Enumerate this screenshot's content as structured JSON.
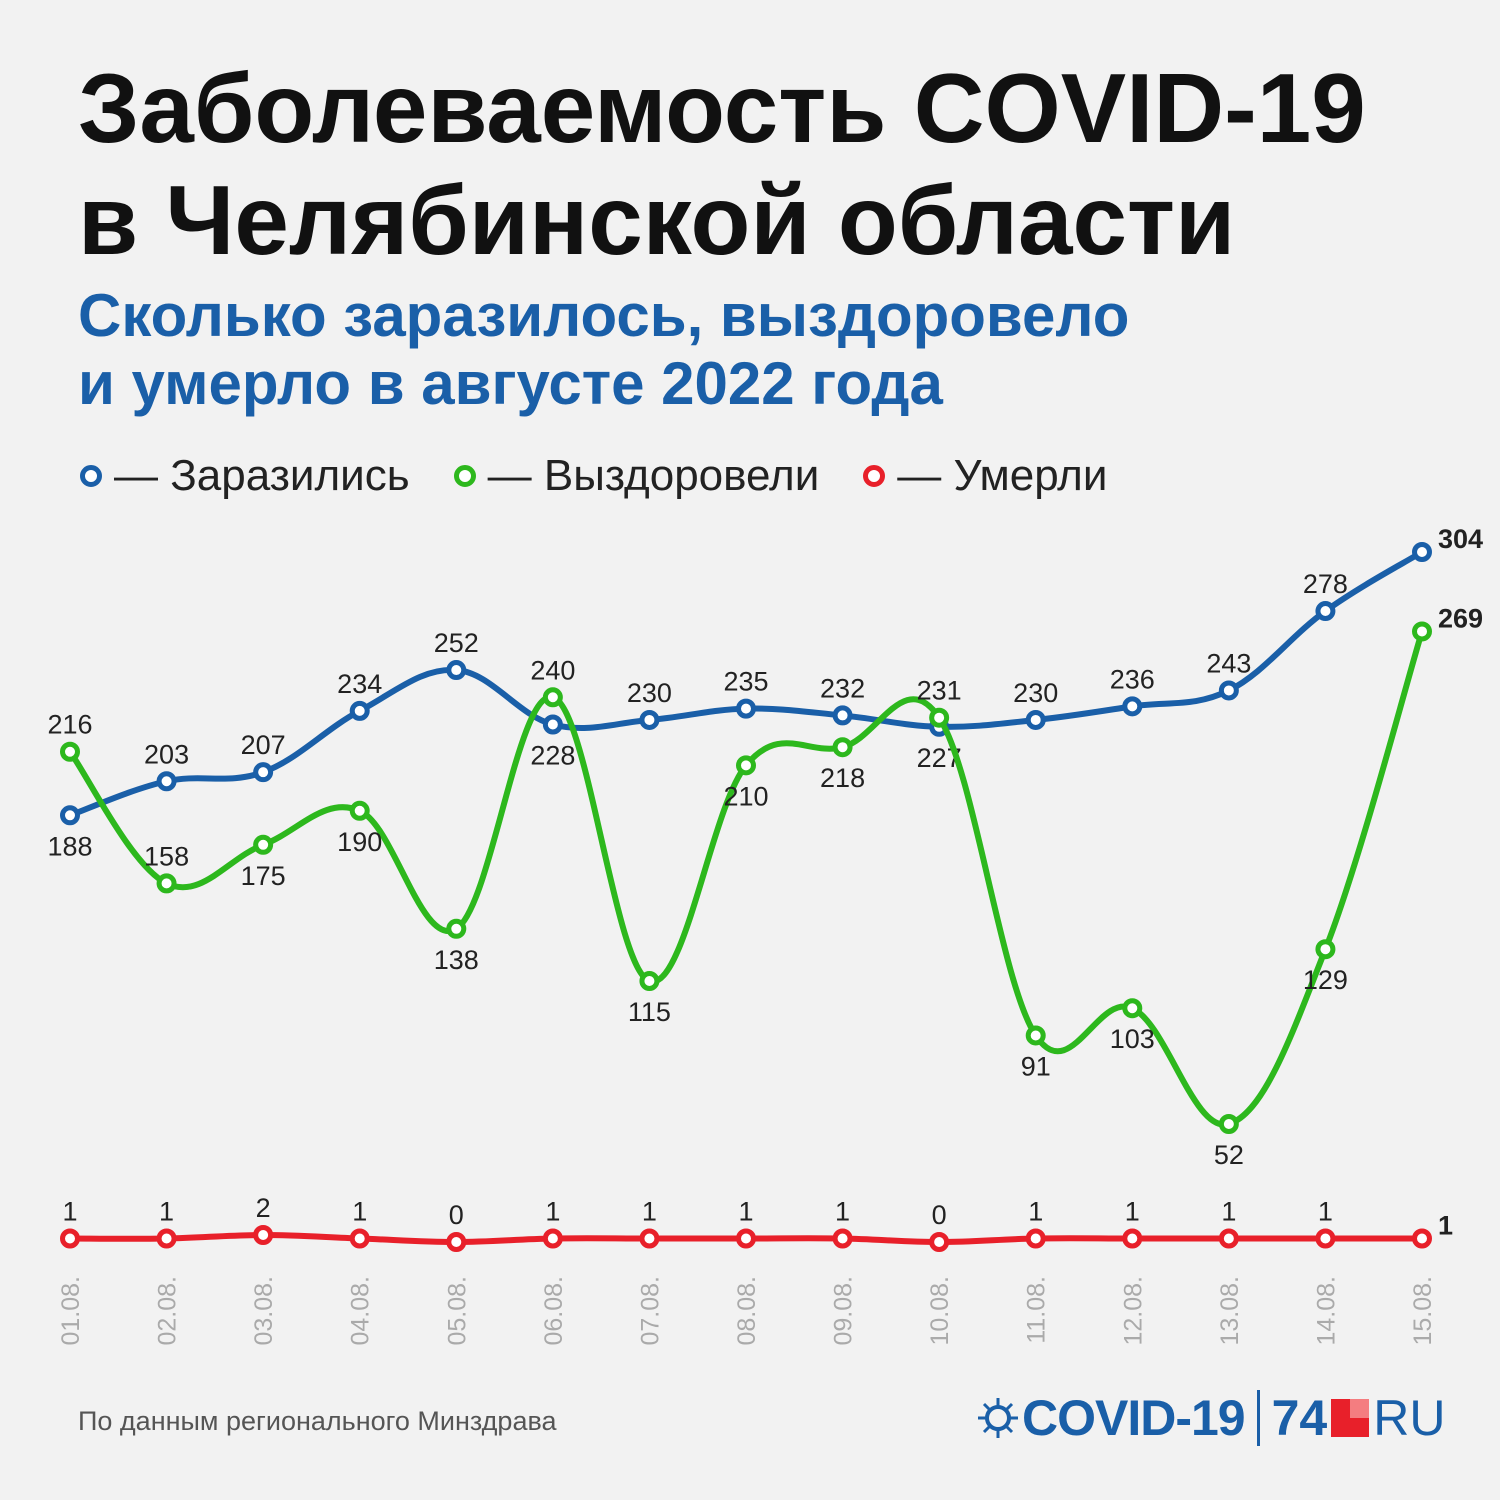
{
  "header": {
    "title_line1": "Заболеваемость COVID-19",
    "title_line2": "в Челябинской области",
    "subtitle_line1": "Сколько заразилось, выздоровело",
    "subtitle_line2": "и умерло в августе 2022 года"
  },
  "footer": {
    "source": "По данным регионального Минздрава",
    "logo_covid": "COVID-19",
    "logo_74": "74",
    "logo_ru": "RU"
  },
  "colors": {
    "infected": "#1a5fa8",
    "recovered": "#2db81d",
    "died": "#e8202a"
  },
  "chart_data": {
    "type": "line",
    "categories": [
      "01.08.",
      "02.08.",
      "03.08.",
      "04.08.",
      "05.08.",
      "06.08.",
      "07.08.",
      "08.08.",
      "09.08.",
      "10.08.",
      "11.08.",
      "12.08.",
      "13.08.",
      "14.08.",
      "15.08."
    ],
    "series": [
      {
        "name": "Заразились",
        "legend": "— Заразились",
        "color": "#1a5fa8",
        "values": [
          188,
          203,
          207,
          234,
          252,
          228,
          230,
          235,
          232,
          227,
          230,
          236,
          243,
          278,
          304
        ]
      },
      {
        "name": "Выздоровели",
        "legend": "— Выздоровели",
        "color": "#2db81d",
        "values": [
          216,
          158,
          175,
          190,
          138,
          240,
          115,
          210,
          218,
          231,
          91,
          103,
          52,
          129,
          269
        ]
      },
      {
        "name": "Умерли",
        "legend": "— Умерли",
        "color": "#e8202a",
        "values": [
          1,
          1,
          2,
          1,
          0,
          1,
          1,
          1,
          1,
          0,
          1,
          1,
          1,
          1,
          1
        ]
      }
    ],
    "last_value_bold": true,
    "grid": false,
    "legend_position": "top-left"
  }
}
